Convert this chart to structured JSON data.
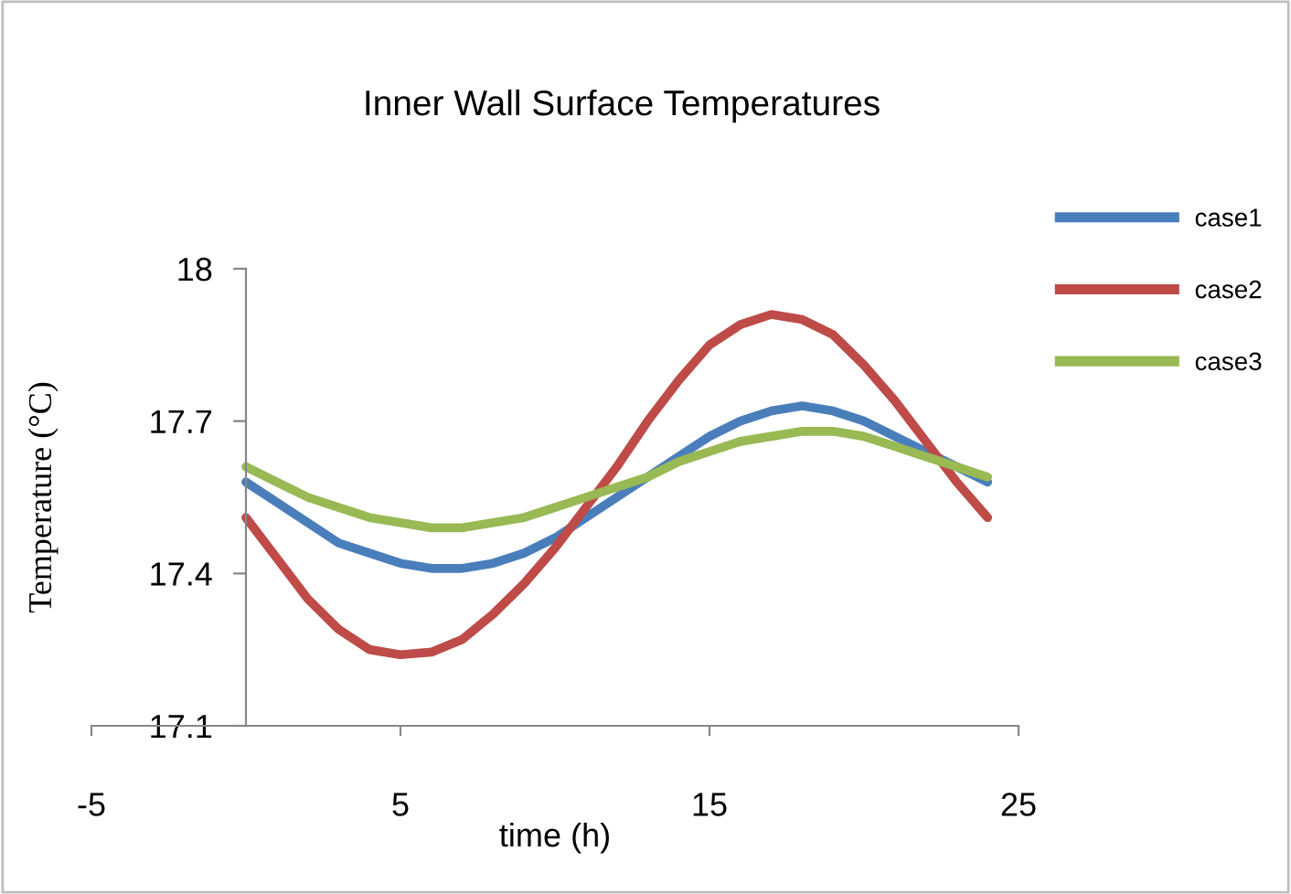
{
  "chart_data": {
    "type": "line",
    "title": "Inner Wall Surface Temperatures",
    "xlabel": "time (h)",
    "ylabel": "Temperature (°C)",
    "xlim": [
      -5,
      25
    ],
    "xticks": [
      -5,
      5,
      15,
      25
    ],
    "ylim": [
      17.1,
      18
    ],
    "yticks": [
      17.1,
      17.4,
      17.7,
      18
    ],
    "grid": false,
    "legend": "right",
    "marker": "none",
    "line_style": "solid",
    "x": [
      0,
      1,
      2,
      3,
      4,
      5,
      6,
      7,
      8,
      9,
      10,
      11,
      12,
      13,
      14,
      15,
      16,
      17,
      18,
      19,
      20,
      21,
      22,
      23,
      24
    ],
    "series": [
      {
        "name": "case1",
        "color": "#4a7ebb",
        "values": [
          17.58,
          17.54,
          17.5,
          17.46,
          17.44,
          17.42,
          17.41,
          17.41,
          17.42,
          17.44,
          17.47,
          17.51,
          17.55,
          17.59,
          17.63,
          17.67,
          17.7,
          17.72,
          17.73,
          17.72,
          17.7,
          17.67,
          17.64,
          17.61,
          17.58
        ]
      },
      {
        "name": "case2",
        "color": "#be4b48",
        "values": [
          17.51,
          17.43,
          17.35,
          17.29,
          17.25,
          17.24,
          17.245,
          17.27,
          17.32,
          17.38,
          17.45,
          17.53,
          17.61,
          17.7,
          17.78,
          17.85,
          17.89,
          17.91,
          17.9,
          17.87,
          17.81,
          17.74,
          17.66,
          17.58,
          17.51
        ]
      },
      {
        "name": "case3",
        "color": "#98b954",
        "values": [
          17.61,
          17.58,
          17.55,
          17.53,
          17.51,
          17.5,
          17.49,
          17.49,
          17.5,
          17.51,
          17.53,
          17.55,
          17.57,
          17.59,
          17.62,
          17.64,
          17.66,
          17.67,
          17.68,
          17.68,
          17.67,
          17.65,
          17.63,
          17.61,
          17.59
        ]
      }
    ]
  }
}
